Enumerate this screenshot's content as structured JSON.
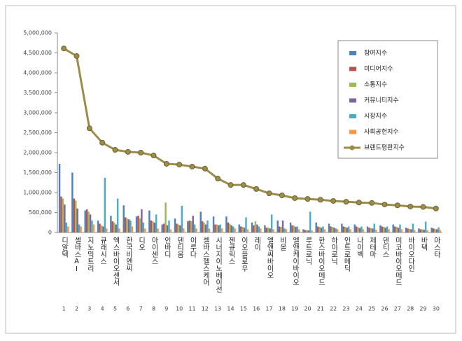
{
  "chart_data": {
    "type": "bar",
    "categories": [
      "디알텍",
      "셀바스AI",
      "지노믹트리",
      "큐래시스",
      "엑스바이오센서",
      "한국비엔씨",
      "디오",
      "아이센스",
      "인바디",
      "덴티움",
      "이루다",
      "셀바스헬스케어",
      "시너지이노베이션",
      "젠큐릭스",
      "이오플로우",
      "레이",
      "엘앤씨바이오",
      "비올",
      "엘앤케이바이오",
      "루트로닉",
      "한스바이오메드",
      "하이로닉",
      "인트로메딕",
      "나이벡",
      "제테마",
      "덴티스",
      "미코바이오메드",
      "바이오다인",
      "바텍",
      "아스타"
    ],
    "ranks": [
      1,
      2,
      3,
      4,
      5,
      6,
      7,
      8,
      9,
      10,
      11,
      12,
      13,
      14,
      15,
      16,
      17,
      18,
      19,
      20,
      21,
      22,
      23,
      24,
      25,
      26,
      27,
      28,
      29,
      30
    ],
    "series": [
      {
        "name": "참여지수",
        "color": "#4f81bd",
        "values": [
          1720000,
          1500000,
          550000,
          300000,
          420000,
          680000,
          400000,
          550000,
          200000,
          350000,
          280000,
          520000,
          400000,
          400000,
          200000,
          250000,
          180000,
          300000,
          250000,
          80000,
          250000,
          220000,
          220000,
          200000,
          150000,
          180000,
          200000,
          120000,
          100000,
          120000
        ]
      },
      {
        "name": "미디어지수",
        "color": "#c0504d",
        "values": [
          900000,
          850000,
          580000,
          220000,
          280000,
          380000,
          420000,
          300000,
          220000,
          220000,
          300000,
          280000,
          200000,
          250000,
          150000,
          180000,
          120000,
          150000,
          180000,
          60000,
          150000,
          150000,
          150000,
          150000,
          120000,
          150000,
          150000,
          100000,
          80000,
          100000
        ]
      },
      {
        "name": "소통지수",
        "color": "#9bbb59",
        "values": [
          850000,
          800000,
          520000,
          180000,
          250000,
          350000,
          350000,
          280000,
          750000,
          200000,
          280000,
          250000,
          200000,
          220000,
          140000,
          280000,
          120000,
          140000,
          170000,
          60000,
          140000,
          140000,
          140000,
          130000,
          110000,
          140000,
          140000,
          90000,
          80000,
          90000
        ]
      },
      {
        "name": "커뮤니티지수",
        "color": "#8064a2",
        "values": [
          700000,
          600000,
          450000,
          150000,
          200000,
          330000,
          580000,
          250000,
          180000,
          180000,
          420000,
          200000,
          180000,
          180000,
          120000,
          200000,
          100000,
          300000,
          140000,
          50000,
          120000,
          120000,
          120000,
          110000,
          100000,
          120000,
          120000,
          80000,
          70000,
          80000
        ]
      },
      {
        "name": "시장지수",
        "color": "#4bacc6",
        "values": [
          250000,
          200000,
          300000,
          1370000,
          850000,
          300000,
          250000,
          450000,
          300000,
          670000,
          200000,
          300000,
          200000,
          150000,
          380000,
          150000,
          450000,
          100000,
          150000,
          520000,
          150000,
          100000,
          150000,
          150000,
          220000,
          150000,
          200000,
          220000,
          270000,
          130000
        ]
      },
      {
        "name": "사회공헌지수",
        "color": "#f79646",
        "values": [
          150000,
          150000,
          200000,
          100000,
          100000,
          150000,
          100000,
          100000,
          80000,
          100000,
          100000,
          100000,
          100000,
          100000,
          80000,
          100000,
          80000,
          80000,
          80000,
          50000,
          80000,
          80000,
          80000,
          80000,
          70000,
          80000,
          80000,
          60000,
          60000,
          60000
        ]
      },
      {
        "name": "브랜드평판지수",
        "color": "#9c8c4a",
        "type": "line",
        "values": [
          4610000,
          4420000,
          2610000,
          2250000,
          2070000,
          2020000,
          2000000,
          1930000,
          1720000,
          1700000,
          1650000,
          1600000,
          1350000,
          1190000,
          1190000,
          1090000,
          980000,
          930000,
          860000,
          840000,
          820000,
          790000,
          770000,
          750000,
          740000,
          700000,
          680000,
          650000,
          640000,
          600000
        ]
      }
    ],
    "ylim": [
      0,
      5000000
    ],
    "yticks": [
      0,
      {
        "value": 500000,
        "label": "500,000"
      },
      {
        "value": 1000000,
        "label": "1,000,000"
      },
      {
        "value": 1500000,
        "label": "1,500,000"
      },
      {
        "value": 2000000,
        "label": "2,000,000"
      },
      {
        "value": 2500000,
        "label": "2,500,000"
      },
      {
        "value": 3000000,
        "label": "3,000,000"
      },
      {
        "value": 3500000,
        "label": "3,500,000"
      },
      {
        "value": 4000000,
        "label": "4,000,000"
      },
      {
        "value": 4500000,
        "label": "4,500,000"
      },
      {
        "value": 5000000,
        "label": "5,000,000"
      }
    ]
  }
}
